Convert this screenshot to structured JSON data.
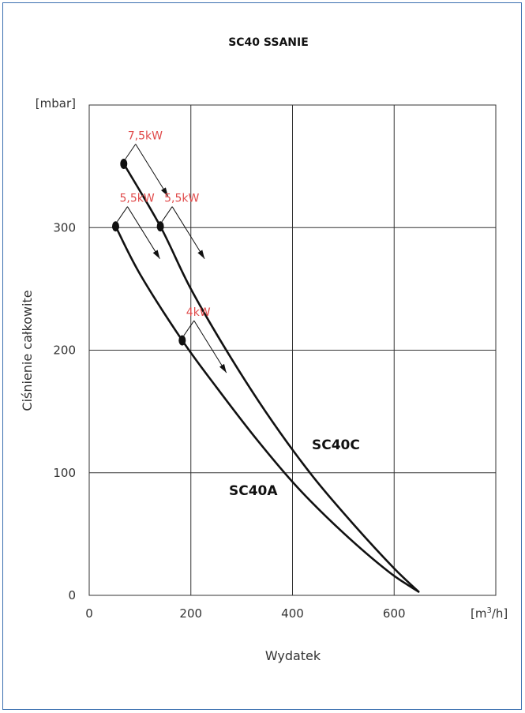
{
  "chart_data": {
    "type": "line",
    "title": "SC40 SSANIE",
    "xlabel": "Wydatek",
    "ylabel": "Ciśnienie całkowite",
    "x_unit_base": "[m",
    "x_unit_sup": "3",
    "x_unit_tail": "/h]",
    "y_unit": "[mbar]",
    "xlim": [
      0,
      800
    ],
    "ylim": [
      0,
      400
    ],
    "x_ticks": [
      "0",
      "200",
      "400",
      "600"
    ],
    "y_ticks": [
      "0",
      "100",
      "200",
      "300"
    ],
    "x_tick_values": [
      0,
      200,
      400,
      600
    ],
    "y_tick_values": [
      0,
      100,
      200,
      300
    ],
    "grid": true,
    "series": [
      {
        "name": "SC40C",
        "x": [
          68,
          140,
          200,
          280,
          360,
          440,
          520,
          600,
          648
        ],
        "y": [
          352,
          301,
          250,
          193,
          142,
          97,
          58,
          22,
          3
        ]
      },
      {
        "name": "SC40A",
        "x": [
          52,
          100,
          183,
          250,
          330,
          410,
          500,
          590,
          648
        ],
        "y": [
          301,
          262,
          208,
          170,
          127,
          88,
          51,
          19,
          3
        ]
      }
    ],
    "power_points": [
      {
        "label": "7,5kW",
        "x": 68,
        "y": 352
      },
      {
        "label": "5,5kW",
        "x": 52,
        "y": 301
      },
      {
        "label": "5,5kW",
        "x": 140,
        "y": 301
      },
      {
        "label": "4kW",
        "x": 183,
        "y": 208
      }
    ],
    "colors": {
      "curve": "#111111",
      "power_label": "#e04a4a",
      "grid": "#333333"
    }
  }
}
